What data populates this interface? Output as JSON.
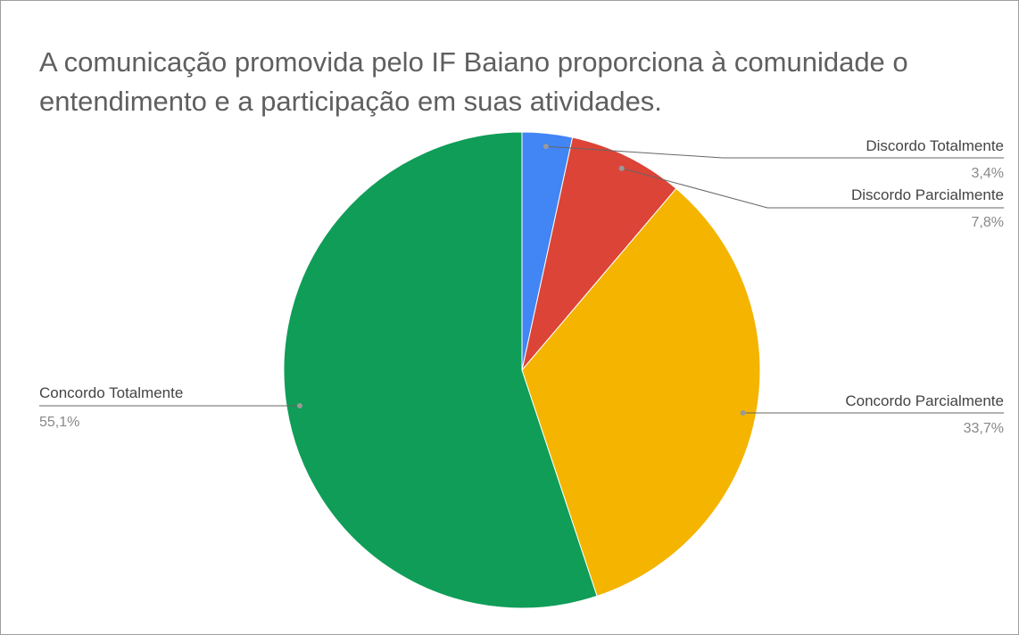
{
  "chart_data": {
    "type": "pie",
    "title": "A comunicação promovida pelo IF Baiano proporciona à comunidade o entendimento e a participação em suas atividades.",
    "categories": [
      "Discordo Totalmente",
      "Discordo Parcialmente",
      "Concordo Parcialmente",
      "Concordo Totalmente"
    ],
    "values": [
      3.4,
      7.8,
      33.7,
      55.1
    ],
    "value_labels": [
      "3,4%",
      "7,8%",
      "33,7%",
      "55,1%"
    ],
    "colors": [
      "#4285f4",
      "#db4437",
      "#f4b400",
      "#0f9d58"
    ]
  }
}
